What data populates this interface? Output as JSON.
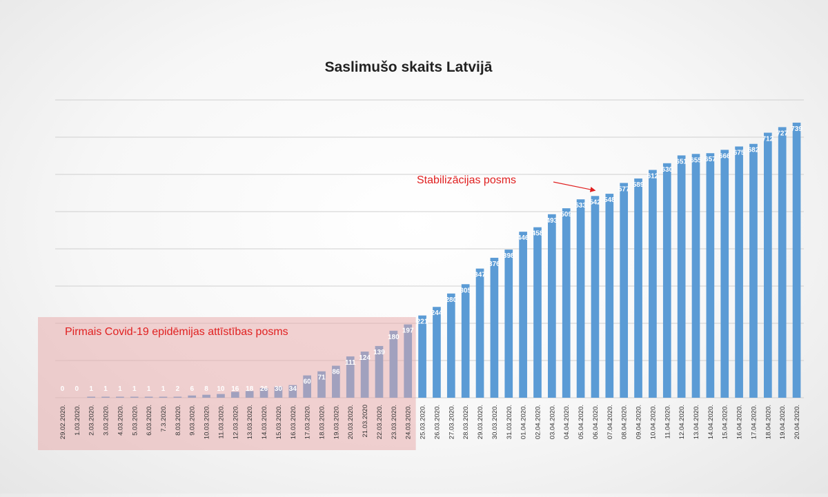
{
  "chart_data": {
    "type": "bar",
    "title": "Saslimušo skaits Latvijā",
    "xlabel": "",
    "ylabel": "",
    "ylim": [
      0,
      800
    ],
    "grid": true,
    "legend": "none",
    "bar_color": "#5b9bd5",
    "categories": [
      "29.02.2020.",
      "1.03.2020.",
      "2.03.2020.",
      "3.03.2020.",
      "4.03.2020.",
      "5.03.2020.",
      "6.03.2020.",
      "7.3.2020.",
      "8.03.2020.",
      "9.03.2020.",
      "10.03.2020.",
      "11.03.2020.",
      "12.03.2020.",
      "13.03.2020.",
      "14.03.2020.",
      "15.03.2020.",
      "16.03.2020.",
      "17.03.2020.",
      "18.03.2020.",
      "19.03.2020.",
      "20.03.2020.",
      "21.03.2020",
      "22.03.2020.",
      "23.03.2020.",
      "24.03.2020.",
      "25.03.2020.",
      "26.03.2020.",
      "27.03.2020.",
      "28.03.2020.",
      "29.03.2020.",
      "30.03.2020.",
      "31.03.2020.",
      "01.04.2020.",
      "02.04.2020.",
      "03.04.2020.",
      "04.04.2020.",
      "05.04.2020.",
      "06.04.2020.",
      "07.04.2020.",
      "08.04.2020.",
      "09.04.2020.",
      "10.04.2020.",
      "11.04.2020.",
      "12.04.2020.",
      "13.04.2020.",
      "14.04.2020.",
      "15.04.2020.",
      "16.04.2020.",
      "17.04.2020.",
      "18.04.2020.",
      "19.04.2020.",
      "20.04.2020."
    ],
    "values": [
      0,
      0,
      1,
      1,
      1,
      1,
      1,
      1,
      2,
      6,
      8,
      10,
      16,
      18,
      26,
      30,
      34,
      60,
      71,
      86,
      111,
      124,
      139,
      180,
      197,
      221,
      244,
      280,
      305,
      347,
      376,
      398,
      446,
      458,
      493,
      509,
      533,
      542,
      548,
      577,
      589,
      612,
      630,
      651,
      655,
      657,
      666,
      675,
      682,
      712,
      727,
      739
    ],
    "annotations": [
      {
        "text": "Pirmais Covid-19 epidēmijas attīstības posms",
        "from_category": "29.02.2020.",
        "to_category": "24.03.2020.",
        "color": "#e02020",
        "shade_color": "#e8a8a8"
      },
      {
        "text": "Stabilizācijas posms",
        "points_to_category": "06.04.2020.",
        "color": "#e02020"
      }
    ]
  }
}
